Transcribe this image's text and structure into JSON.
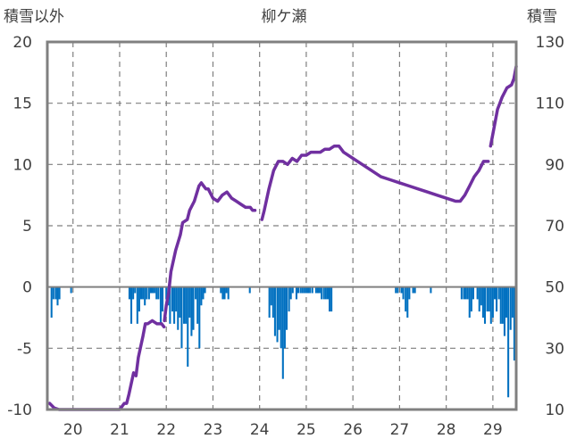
{
  "chart_data": {
    "type": "bar+line",
    "title": "柳ケ瀬",
    "left_axis_label": "積雪以外",
    "right_axis_label": "積雪",
    "left_ylim": [
      -10,
      20
    ],
    "left_ticks": [
      -10,
      -5,
      0,
      5,
      10,
      15,
      20
    ],
    "right_ylim": [
      10,
      130
    ],
    "right_ticks": [
      10,
      30,
      50,
      70,
      90,
      110,
      130
    ],
    "xlim": [
      19.45,
      29.5
    ],
    "x_ticks": [
      20,
      21,
      22,
      23,
      24,
      25,
      26,
      27,
      28,
      29
    ],
    "grid": true,
    "colors": {
      "bars": "#0070C0",
      "line": "#7030A0",
      "frame": "#808080",
      "grid": "#7f7f7f"
    },
    "series": [
      {
        "type": "bar",
        "axis": "left",
        "x": [
          19.54,
          19.58,
          19.63,
          19.67,
          19.71,
          19.96,
          21.21,
          21.25,
          21.29,
          21.33,
          21.38,
          21.42,
          21.46,
          21.5,
          21.54,
          21.58,
          21.63,
          21.67,
          21.71,
          21.75,
          21.79,
          21.83,
          21.88,
          21.92,
          22.0,
          22.04,
          22.08,
          22.13,
          22.17,
          22.21,
          22.25,
          22.29,
          22.33,
          22.38,
          22.42,
          22.46,
          22.5,
          22.54,
          22.58,
          22.63,
          22.67,
          22.71,
          22.75,
          22.79,
          22.83,
          23.17,
          23.21,
          23.25,
          23.29,
          23.33,
          23.79,
          24.21,
          24.25,
          24.29,
          24.33,
          24.38,
          24.42,
          24.46,
          24.5,
          24.54,
          24.58,
          24.63,
          24.67,
          24.71,
          24.79,
          24.83,
          24.88,
          24.92,
          24.96,
          25.0,
          25.04,
          25.08,
          25.13,
          25.21,
          25.25,
          25.29,
          25.33,
          25.38,
          25.42,
          25.46,
          25.5,
          25.54,
          26.92,
          26.96,
          27.04,
          27.08,
          27.13,
          27.17,
          27.21,
          27.29,
          27.33,
          27.67,
          28.33,
          28.38,
          28.42,
          28.46,
          28.5,
          28.54,
          28.58,
          28.67,
          28.71,
          28.75,
          28.79,
          28.83,
          28.88,
          28.92,
          28.96,
          29.0,
          29.04,
          29.08,
          29.13,
          29.17,
          29.21,
          29.25,
          29.29,
          29.33,
          29.38,
          29.42,
          29.46
        ],
        "values": [
          -2.5,
          -1.0,
          -1.0,
          -1.5,
          -1.0,
          -0.5,
          -1.0,
          -3.0,
          -1.0,
          -0.5,
          -3.0,
          -2.0,
          -1.0,
          -1.0,
          -1.5,
          -1.0,
          -1.0,
          -0.5,
          -0.5,
          -0.5,
          -1.0,
          -1.0,
          -3.0,
          -2.0,
          -1.0,
          -1.5,
          -3.0,
          -2.0,
          -3.0,
          -2.0,
          -3.5,
          -2.5,
          -5.0,
          -3.0,
          -3.0,
          -6.5,
          -2.5,
          -4.0,
          -3.5,
          -1.0,
          -3.0,
          -5.0,
          -1.5,
          -1.0,
          -0.5,
          -0.5,
          -1.0,
          -1.0,
          -0.5,
          -1.0,
          -0.5,
          -2.5,
          -1.5,
          -2.5,
          -4.0,
          -4.5,
          -3.5,
          -5.0,
          -7.5,
          -5.0,
          -3.5,
          -2.0,
          -1.0,
          -0.5,
          -1.0,
          -0.5,
          -0.5,
          -0.5,
          -0.5,
          -0.5,
          -0.5,
          -0.5,
          -0.5,
          -0.5,
          -0.5,
          -0.5,
          -1.0,
          -1.0,
          -1.0,
          -1.0,
          -2.0,
          -2.0,
          -0.5,
          -0.5,
          -0.5,
          -1.0,
          -2.0,
          -2.5,
          -1.0,
          -0.5,
          -0.5,
          -0.5,
          -1.0,
          -1.0,
          -1.0,
          -1.0,
          -2.5,
          -2.0,
          -1.0,
          -1.0,
          -2.0,
          -1.5,
          -2.5,
          -3.0,
          -2.0,
          -2.0,
          -3.0,
          -2.5,
          -1.0,
          -2.0,
          -1.0,
          -3.0,
          -3.0,
          -4.0,
          -2.5,
          -9.0,
          -3.5,
          -2.5,
          -6.0
        ]
      },
      {
        "type": "line",
        "axis": "right",
        "segments": [
          {
            "x": [
              19.5,
              19.6,
              19.7,
              19.8,
              19.95,
              20.2,
              20.6,
              20.9,
              21.0,
              21.05,
              21.1,
              21.15,
              21.2,
              21.3,
              21.35,
              21.4,
              21.5,
              21.55,
              21.6,
              21.7,
              21.8,
              21.9,
              21.95
            ],
            "values": [
              12,
              10.5,
              10,
              10,
              10,
              10,
              10,
              10,
              10,
              11,
              12,
              12,
              15,
              22,
              21,
              27,
              34,
              38,
              38,
              39,
              38,
              38,
              37
            ]
          },
          {
            "x": [
              21.96,
              22.0,
              22.05,
              22.1,
              22.2,
              22.3,
              22.35,
              22.45,
              22.5,
              22.6,
              22.7,
              22.75,
              22.8,
              22.85,
              22.9,
              23.0,
              23.1,
              23.2,
              23.3,
              23.4,
              23.5,
              23.6,
              23.7,
              23.8,
              23.85,
              23.9
            ],
            "values": [
              39,
              44,
              48,
              55,
              62,
              67,
              71,
              72,
              75,
              78,
              83,
              84,
              83,
              82,
              82,
              79,
              78,
              80,
              81,
              79,
              78,
              77,
              76,
              76,
              75,
              75
            ]
          },
          {
            "x": [
              24.05,
              24.1,
              24.2,
              24.3,
              24.4,
              24.5,
              24.6,
              24.7,
              24.8,
              24.9,
              25.0,
              25.1,
              25.2,
              25.3,
              25.4,
              25.5,
              25.6,
              25.7,
              25.8,
              26.0,
              26.2,
              26.4,
              26.6,
              26.8,
              27.0,
              27.2,
              27.4,
              27.6,
              27.8,
              28.0,
              28.2,
              28.3,
              28.4,
              28.5,
              28.6,
              28.7,
              28.8,
              28.9
            ],
            "values": [
              72,
              75,
              82,
              88,
              91,
              91,
              90,
              92,
              91,
              93,
              93,
              94,
              94,
              94,
              95,
              95,
              96,
              96,
              94,
              92,
              90,
              88,
              86,
              85,
              84,
              83,
              82,
              81,
              80,
              79,
              78,
              78,
              80,
              83,
              86,
              88,
              91,
              91
            ]
          },
          {
            "x": [
              28.95,
              29.0,
              29.05,
              29.1,
              29.15,
              29.2,
              29.3,
              29.4,
              29.45,
              29.5
            ],
            "values": [
              96,
              100,
              104,
              108,
              110,
              112,
              115,
              116,
              118,
              122
            ]
          }
        ]
      }
    ]
  }
}
